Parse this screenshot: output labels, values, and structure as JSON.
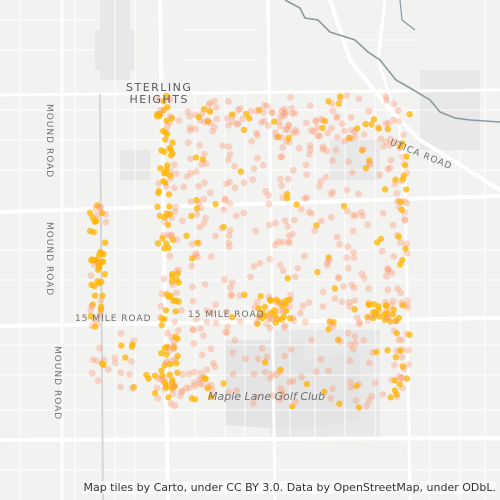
{
  "map": {
    "place_line1": "STERLING",
    "place_line2": "HEIGHTS",
    "roads": {
      "mound_road": "MOUND ROAD",
      "fifteen_mile_road": "15 MILE ROAD",
      "utica_road": "UTICA ROAD"
    },
    "golf_club": "Maple Lane Golf Club",
    "attribution": "Map tiles by Carto, under CC BY 3.0. Data by OpenStreetMap, under ODbL.",
    "colors": {
      "background": "#f2f2f1",
      "major_road": "#ffffff",
      "water": "#8c9aa0",
      "park": "#e3e3e3",
      "point_core": "#ffb400",
      "point_halo": "#ff9566"
    }
  }
}
